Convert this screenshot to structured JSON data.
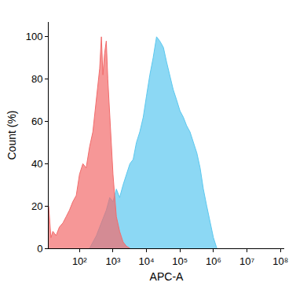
{
  "chart_data": {
    "type": "area",
    "x_label": "APC-A",
    "y_label": "Count (%)",
    "log": "x",
    "grid": false,
    "xlim": [
      12,
      130000000
    ],
    "ylim": [
      0,
      107
    ],
    "xticks": [
      {
        "value": 100,
        "label": "10²"
      },
      {
        "value": 1000,
        "label": "10³"
      },
      {
        "value": 10000,
        "label": "10⁴"
      },
      {
        "value": 100000,
        "label": "10⁵"
      },
      {
        "value": 1000000,
        "label": "10⁶"
      },
      {
        "value": 10000000,
        "label": "10⁷"
      },
      {
        "value": 100000000,
        "label": "10⁸"
      }
    ],
    "yticks": [
      0,
      20,
      40,
      60,
      80,
      100
    ],
    "series": [
      {
        "color": "#5bc8ef",
        "x": [
          200,
          250,
          320,
          400,
          500,
          630,
          800,
          1000,
          1260,
          1580,
          2000,
          2500,
          3200,
          4000,
          5000,
          6300,
          8000,
          10000,
          12600,
          15800,
          20000,
          25000,
          32000,
          40000,
          50000,
          63000,
          80000,
          100000,
          126000,
          158000,
          200000,
          250000,
          320000,
          400000,
          500000,
          630000,
          800000,
          1000000,
          1260000
        ],
        "values": [
          0,
          3,
          6,
          10,
          14,
          18,
          24,
          22,
          28,
          24,
          30,
          35,
          40,
          42,
          50,
          55,
          62,
          72,
          82,
          90,
          100,
          98,
          95,
          88,
          82,
          75,
          70,
          65,
          62,
          58,
          55,
          50,
          45,
          38,
          28,
          20,
          12,
          5,
          0
        ]
      },
      {
        "color": "#f26b6b",
        "x": [
          12,
          14,
          16,
          20,
          25,
          32,
          40,
          50,
          63,
          80,
          100,
          126,
          158,
          200,
          250,
          320,
          400,
          450,
          500,
          560,
          630,
          700,
          800,
          900,
          1000,
          1120,
          1260,
          1580,
          2000,
          2500,
          3200
        ],
        "values": [
          20,
          5,
          8,
          6,
          10,
          12,
          15,
          18,
          22,
          25,
          35,
          40,
          38,
          48,
          55,
          70,
          85,
          100,
          82,
          92,
          98,
          80,
          62,
          45,
          35,
          25,
          15,
          8,
          3,
          1,
          0
        ]
      }
    ]
  }
}
